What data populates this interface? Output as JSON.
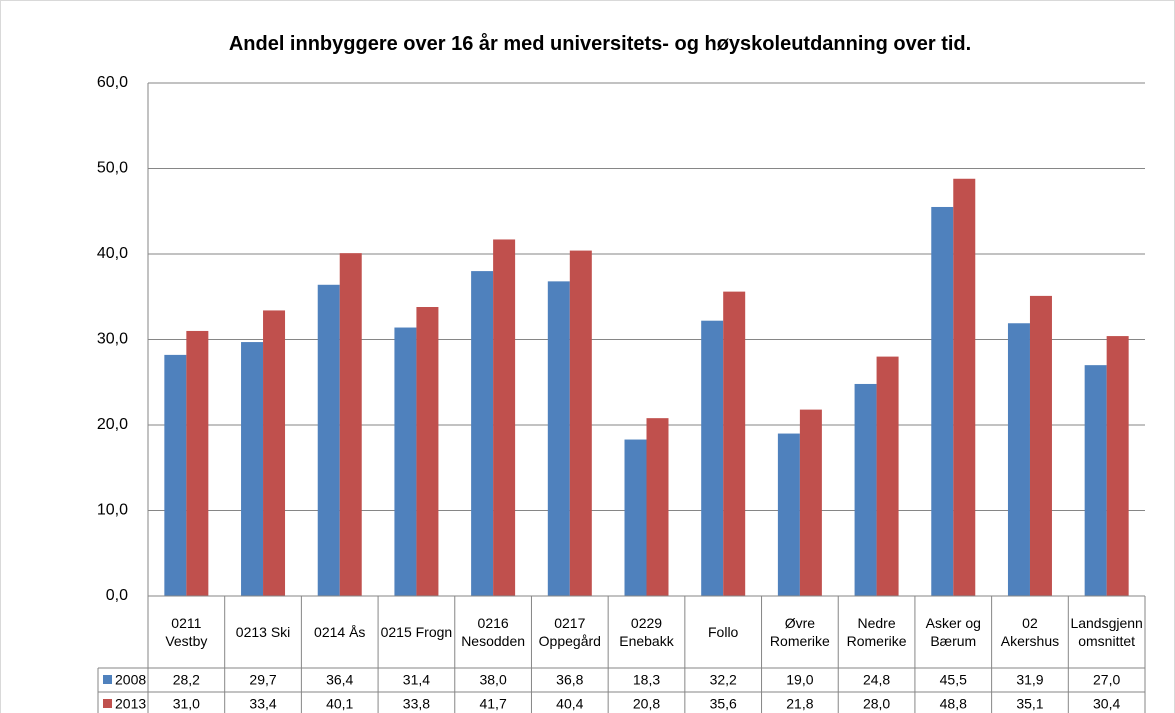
{
  "chart_data": {
    "type": "bar",
    "title": "Andel innbyggere over 16 år med universitets- og høyskoleutdanning over tid.",
    "categories": [
      "0211 Vestby",
      "0213 Ski",
      "0214 Ås",
      "0215 Frogn",
      "0216 Nesodden",
      "0217 Oppegård",
      "0229 Enebakk",
      "Follo",
      "Øvre Romerike",
      "Nedre Romerike",
      "Asker og Bærum",
      "02 Akershus",
      "Landsgjennomsnittet"
    ],
    "series": [
      {
        "name": "2008",
        "color": "#4f81bd",
        "values": [
          28.2,
          29.7,
          36.4,
          31.4,
          38.0,
          36.8,
          18.3,
          32.2,
          19.0,
          24.8,
          45.5,
          31.9,
          27.0
        ],
        "value_labels": [
          "28,2",
          "29,7",
          "36,4",
          "31,4",
          "38,0",
          "36,8",
          "18,3",
          "32,2",
          "19,0",
          "24,8",
          "45,5",
          "31,9",
          "27,0"
        ]
      },
      {
        "name": "2013",
        "color": "#c0504d",
        "values": [
          31.0,
          33.4,
          40.1,
          33.8,
          41.7,
          40.4,
          20.8,
          35.6,
          21.8,
          28.0,
          48.8,
          35.1,
          30.4
        ],
        "value_labels": [
          "31,0",
          "33,4",
          "40,1",
          "33,8",
          "41,7",
          "40,4",
          "20,8",
          "35,6",
          "21,8",
          "28,0",
          "48,8",
          "35,1",
          "30,4"
        ]
      }
    ],
    "ylim": [
      0,
      60
    ],
    "yticks": [
      {
        "value": 0,
        "label": "0,0"
      },
      {
        "value": 10,
        "label": "10,0"
      },
      {
        "value": 20,
        "label": "20,0"
      },
      {
        "value": 30,
        "label": "30,0"
      },
      {
        "value": 40,
        "label": "40,0"
      },
      {
        "value": 50,
        "label": "50,0"
      },
      {
        "value": 60,
        "label": "60,0"
      }
    ],
    "grid": true
  }
}
